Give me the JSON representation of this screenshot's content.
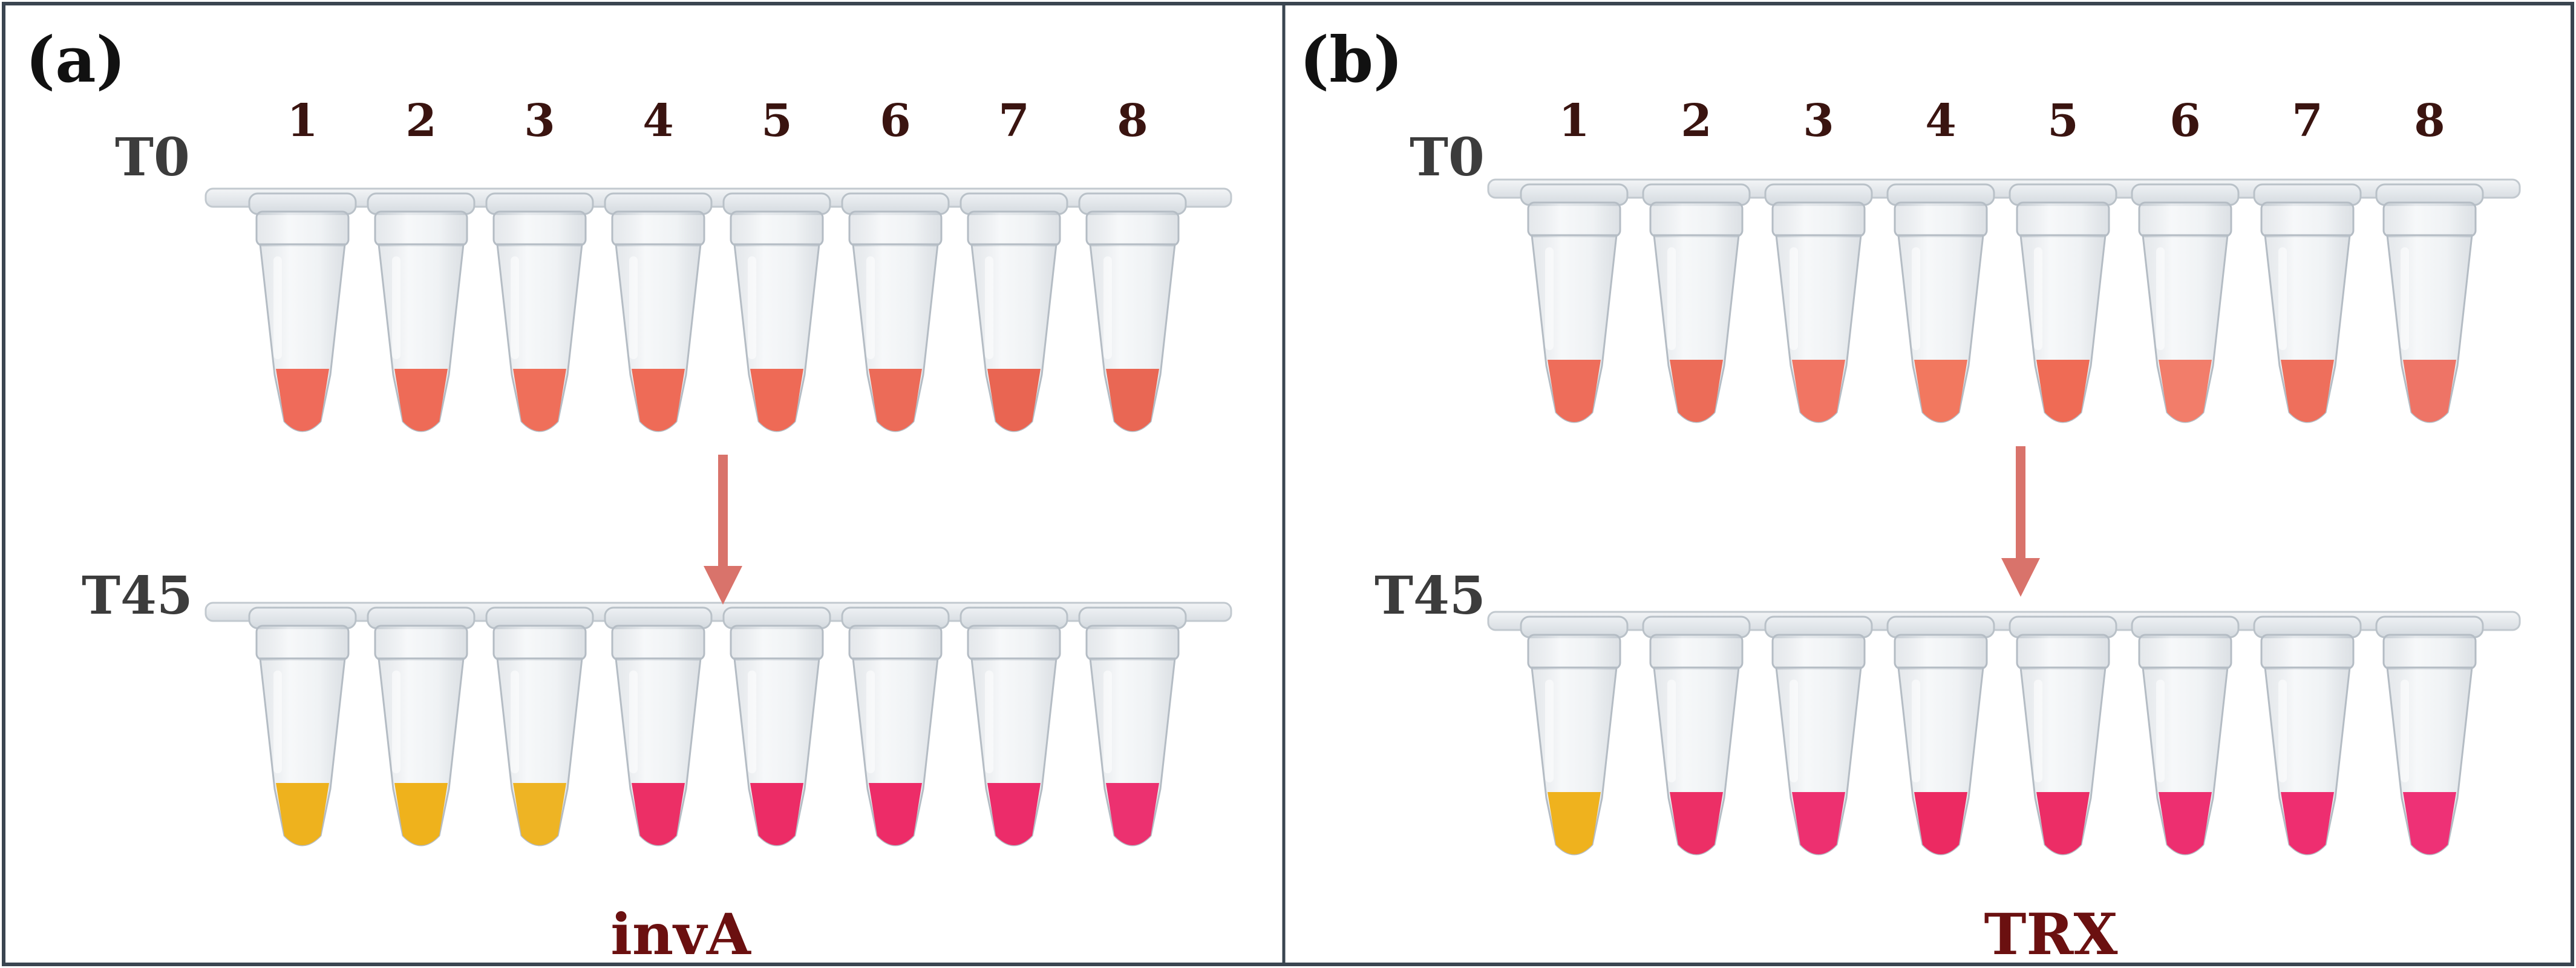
{
  "panels": [
    {
      "id": "a",
      "label": "(a)",
      "gene": "invA",
      "row_labels": [
        "T0",
        "T45"
      ],
      "tube_numbers": [
        "1",
        "2",
        "3",
        "4",
        "5",
        "6",
        "7",
        "8"
      ],
      "t0_colors": [
        "#ef6b5a",
        "#ee6b57",
        "#ef6f5a",
        "#ee6b57",
        "#ee6a56",
        "#ec6b58",
        "#e96552",
        "#e96754"
      ],
      "t45_colors": [
        "#eeb21e",
        "#efb21c",
        "#eeb424",
        "#ec2f66",
        "#ec2c66",
        "#ed2c68",
        "#ec2c6a",
        "#ec3170"
      ]
    },
    {
      "id": "b",
      "label": "(b)",
      "gene": "TRX",
      "row_labels": [
        "T0",
        "T45"
      ],
      "tube_numbers": [
        "1",
        "2",
        "3",
        "4",
        "5",
        "6",
        "7",
        "8"
      ],
      "t0_colors": [
        "#ee6d5a",
        "#ec6c58",
        "#f17563",
        "#f2785f",
        "#ef6b55",
        "#f27d6a",
        "#ee6f5c",
        "#ee7466"
      ],
      "t45_colors": [
        "#efb21e",
        "#ec2f66",
        "#ed3070",
        "#ec2a62",
        "#ec2d66",
        "#ed2f70",
        "#ee2e70",
        "#ee3176"
      ]
    }
  ],
  "colors": {
    "border": "#3a4550",
    "number_text": "#3a1410",
    "row_label_text": "#3c3c3c",
    "gene_text": "#6b1010",
    "arrow": "#d9736b"
  }
}
